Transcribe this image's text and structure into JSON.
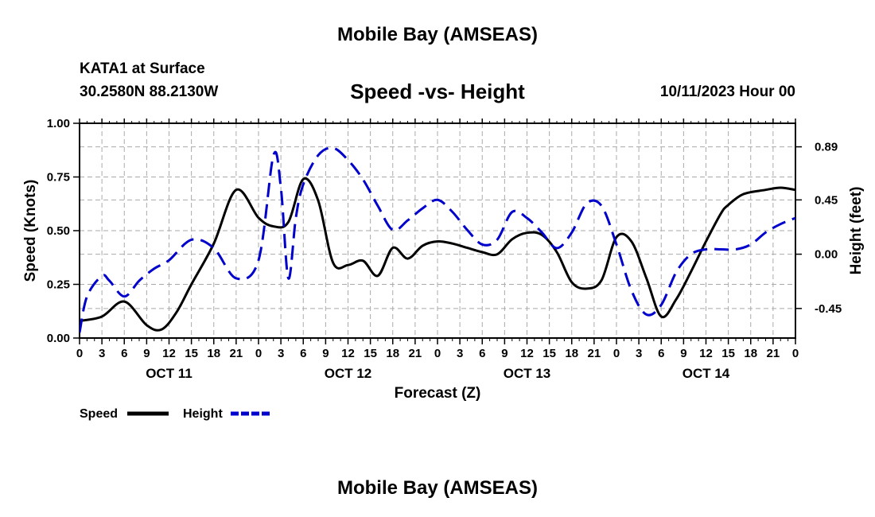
{
  "header": {
    "title": "Mobile Bay (AMSEAS)",
    "station": "KATA1 at Surface",
    "coords": "30.2580N  88.2130W",
    "chart_title": "Speed -vs- Height",
    "run_time": "10/11/2023 Hour 00"
  },
  "footer": {
    "title": "Mobile Bay (AMSEAS)"
  },
  "chart_data": {
    "type": "line",
    "title": "Speed -vs- Height",
    "xlabel": "Forecast (Z)",
    "ylabel": "Speed (Knots)",
    "y2label": "Height (feet)",
    "xlim": [
      0,
      96
    ],
    "ylim": [
      0,
      1.0
    ],
    "y2lim": [
      -0.695,
      1.085
    ],
    "x_ticks": [
      0,
      3,
      6,
      9,
      12,
      15,
      18,
      21,
      24,
      27,
      30,
      33,
      36,
      39,
      42,
      45,
      48,
      51,
      54,
      57,
      60,
      63,
      66,
      69,
      72,
      75,
      78,
      81,
      84,
      87,
      90,
      93,
      96
    ],
    "x_tick_labels": [
      "0",
      "3",
      "6",
      "9",
      "12",
      "15",
      "18",
      "21",
      "0",
      "3",
      "6",
      "9",
      "12",
      "15",
      "18",
      "21",
      "0",
      "3",
      "6",
      "9",
      "12",
      "15",
      "18",
      "21",
      "0",
      "3",
      "6",
      "9",
      "12",
      "15",
      "18",
      "21",
      "0"
    ],
    "day_labels": [
      {
        "x": 12,
        "label": "OCT 11"
      },
      {
        "x": 36,
        "label": "OCT 12"
      },
      {
        "x": 60,
        "label": "OCT 13"
      },
      {
        "x": 84,
        "label": "OCT 14"
      }
    ],
    "y_ticks": [
      0.0,
      0.25,
      0.5,
      0.75,
      1.0
    ],
    "y_tick_labels": [
      "0.00",
      "0.25",
      "0.50",
      "0.75",
      "1.00"
    ],
    "y2_ticks": [
      -0.45,
      0.0,
      0.45,
      0.89
    ],
    "y2_tick_labels": [
      "-0.45",
      "0.00",
      "0.45",
      "0.89"
    ],
    "grid": true,
    "legend": {
      "position": "bottom-left",
      "entries": [
        "Speed",
        "Height"
      ]
    },
    "series": [
      {
        "name": "Speed",
        "color": "#000000",
        "dashed": false,
        "axis": "left",
        "x": [
          0,
          3,
          6,
          9,
          11,
          13,
          15,
          18,
          21,
          24,
          26,
          28,
          30,
          32,
          34,
          36,
          38,
          40,
          42,
          44,
          46,
          48,
          50,
          52,
          54,
          56,
          58,
          60,
          62,
          64,
          66,
          68,
          70,
          72,
          74,
          76,
          78,
          80,
          82,
          84,
          86,
          87,
          89,
          92,
          94,
          96
        ],
        "y": [
          0.08,
          0.1,
          0.17,
          0.06,
          0.04,
          0.12,
          0.25,
          0.44,
          0.69,
          0.56,
          0.52,
          0.54,
          0.74,
          0.64,
          0.35,
          0.34,
          0.36,
          0.29,
          0.42,
          0.37,
          0.43,
          0.45,
          0.44,
          0.42,
          0.4,
          0.39,
          0.46,
          0.49,
          0.48,
          0.4,
          0.26,
          0.23,
          0.27,
          0.47,
          0.45,
          0.28,
          0.1,
          0.18,
          0.31,
          0.45,
          0.58,
          0.62,
          0.67,
          0.69,
          0.7,
          0.69
        ]
      },
      {
        "name": "Height",
        "color": "#0000cc",
        "dashed": true,
        "axis": "right",
        "x": [
          0,
          1,
          3,
          4,
          6,
          8,
          10,
          12,
          15,
          18,
          21,
          24,
          26,
          27,
          28,
          29,
          30,
          32,
          34,
          36,
          38,
          40,
          42,
          44,
          46,
          48,
          50,
          52,
          54,
          56,
          58,
          60,
          62,
          64,
          66,
          68,
          70,
          72,
          74,
          76,
          78,
          80,
          82,
          84,
          86,
          88,
          90,
          92,
          94,
          96
        ],
        "y": [
          -0.65,
          -0.35,
          -0.18,
          -0.22,
          -0.35,
          -0.22,
          -0.12,
          -0.05,
          0.12,
          0.05,
          -0.2,
          -0.05,
          0.82,
          0.55,
          -0.2,
          0.3,
          0.58,
          0.82,
          0.88,
          0.78,
          0.62,
          0.4,
          0.2,
          0.28,
          0.38,
          0.45,
          0.35,
          0.2,
          0.08,
          0.12,
          0.35,
          0.3,
          0.18,
          0.05,
          0.18,
          0.42,
          0.4,
          0.08,
          -0.3,
          -0.5,
          -0.42,
          -0.15,
          0.0,
          0.04,
          0.04,
          0.04,
          0.08,
          0.18,
          0.25,
          0.3
        ]
      }
    ]
  }
}
